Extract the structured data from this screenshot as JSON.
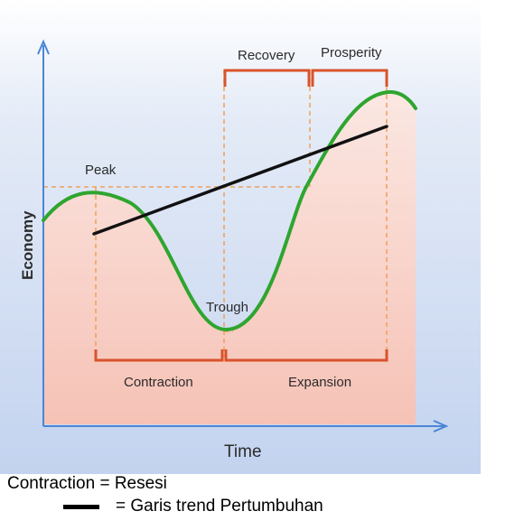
{
  "diagram": {
    "y_axis_label": "Economy",
    "x_axis_label": "Time",
    "labels": {
      "peak": "Peak",
      "trough": "Trough",
      "contraction": "Contraction",
      "expansion": "Expansion",
      "recovery": "Recovery",
      "prosperity": "Prosperity"
    },
    "colors": {
      "curve": "#2fa52f",
      "trend": "#111111",
      "bracket": "#d9532c",
      "guide": "#f0a058",
      "axis": "#4a86d6",
      "bg_top": "#cfdcf3",
      "bg_bottom": "#f7c8bd"
    }
  },
  "legend": {
    "contraction_line": "Contraction = Resesi",
    "trend_line": "=  Garis trend Pertumbuhan"
  }
}
